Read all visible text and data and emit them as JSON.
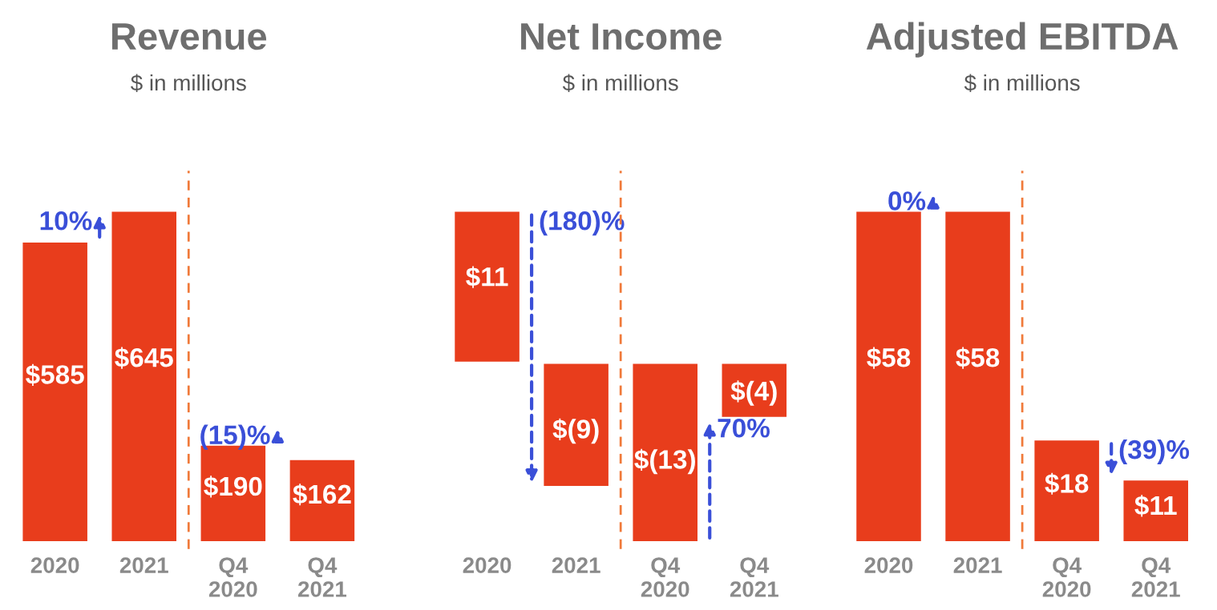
{
  "chart_data": [
    {
      "type": "bar",
      "title": "Revenue",
      "subtitle": "$ in millions",
      "categories": [
        "2020",
        "2021",
        "Q4\n2020",
        "Q4\n2021"
      ],
      "values": [
        585,
        645,
        190,
        162
      ],
      "color": "#e83d1c",
      "value_labels": [
        "$585",
        "$645",
        "$190",
        "$162"
      ],
      "annotations": [
        "10%",
        "(15)%"
      ]
    },
    {
      "type": "bar",
      "title": "Net Income",
      "subtitle": "$ in millions",
      "categories": [
        "2020",
        "2021",
        "Q4\n2020",
        "Q4\n2021"
      ],
      "values": [
        11,
        -9,
        -13,
        -4
      ],
      "color": "#e83d1c",
      "value_labels": [
        "$11",
        "$(9)",
        "$(13)",
        "$(4)"
      ],
      "annotations": [
        "(180)%",
        "70%"
      ]
    },
    {
      "type": "bar",
      "title": "Adjusted EBITDA",
      "subtitle": "$ in millions",
      "categories": [
        "2020",
        "2021",
        "Q4\n2020",
        "Q4\n2021"
      ],
      "values": [
        58,
        58,
        18,
        11
      ],
      "color": "#e83d1c",
      "value_labels": [
        "$58",
        "$58",
        "$18",
        "$11"
      ],
      "annotations": [
        "0%",
        "(39)%"
      ]
    }
  ]
}
